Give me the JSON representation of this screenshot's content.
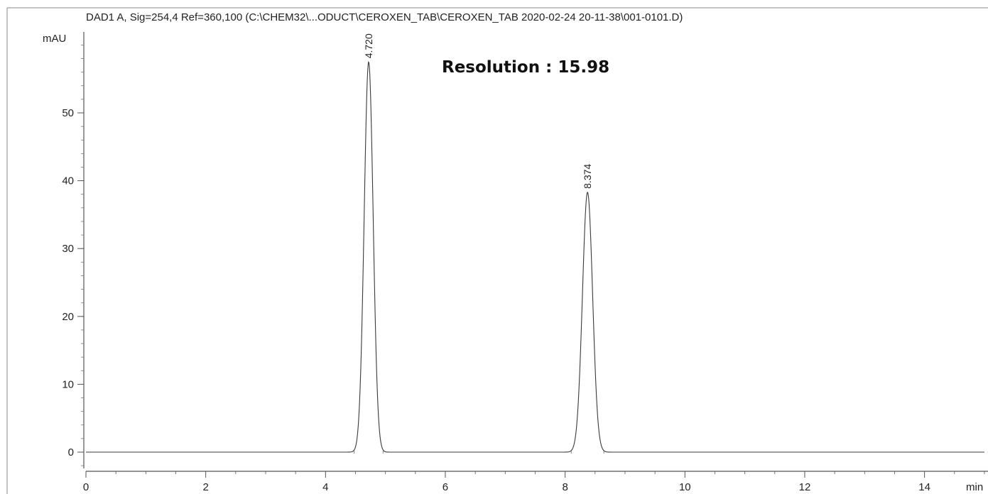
{
  "chart_data": {
    "type": "line",
    "title": "DAD1 A, Sig=254,4 Ref=360,100 (C:\\CHEM32\\...ODUCT\\CEROXEN_TAB\\CEROXEN_TAB 2020-02-24 20-11-38\\001-0101.D)",
    "ylabel": "mAU",
    "xlabel": "min",
    "xlim": [
      0,
      15.0
    ],
    "ylim": [
      -3,
      62
    ],
    "x_ticks": [
      0,
      2,
      4,
      6,
      8,
      10,
      12,
      14
    ],
    "y_ticks": [
      0,
      10,
      20,
      30,
      40,
      50
    ],
    "grid": false,
    "annotation": "Resolution : 15.98",
    "peaks": [
      {
        "label": "4.720",
        "rt": 4.72,
        "height": 57.5,
        "width": 0.075
      },
      {
        "label": "8.374",
        "rt": 8.374,
        "height": 38.3,
        "width": 0.085
      }
    ],
    "series": [
      {
        "x": [
          0,
          2,
          4,
          4.5,
          4.6,
          4.65,
          4.7,
          4.72,
          4.74,
          4.79,
          4.84,
          4.95,
          6,
          8,
          8.15,
          8.25,
          8.32,
          8.374,
          8.43,
          8.5,
          8.6,
          8.75,
          10,
          12,
          14,
          15.0
        ],
        "y": [
          0.0,
          0.05,
          0.1,
          0.2,
          2.3,
          20.0,
          52.0,
          57.5,
          52.0,
          20.0,
          2.3,
          0.3,
          0.1,
          0.1,
          0.6,
          9.3,
          30.2,
          38.3,
          30.2,
          9.3,
          0.6,
          0.1,
          0.05,
          0.0,
          0.0,
          0.0
        ]
      }
    ]
  }
}
